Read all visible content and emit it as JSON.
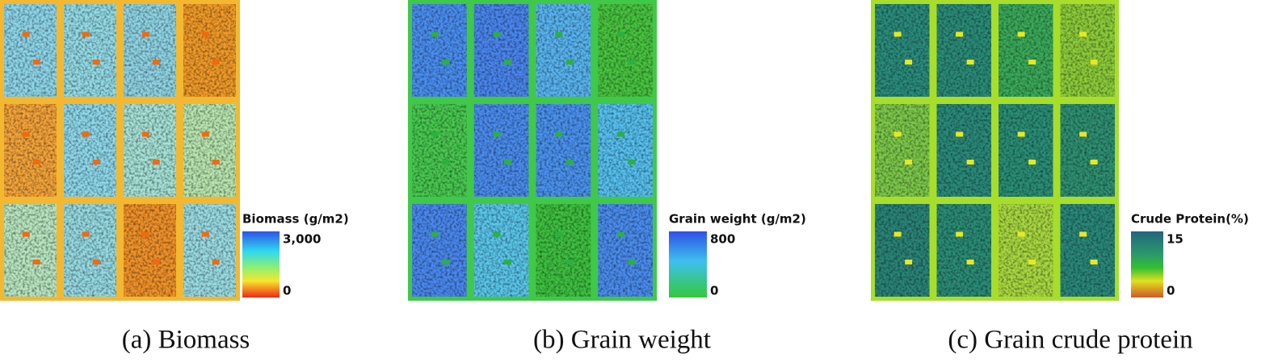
{
  "panels": [
    {
      "legend": {
        "title": "Biomass (g/m2)",
        "max": "3,000",
        "min": "0"
      },
      "caption": "(a) Biomass"
    },
    {
      "legend": {
        "title": "Grain weight (g/m2)",
        "max": "800",
        "min": "0"
      },
      "caption": "(b) Grain weight"
    },
    {
      "legend": {
        "title": "Crude Protein(%)",
        "max": "15",
        "min": "0"
      },
      "caption": "(c) Grain crude protein"
    }
  ]
}
